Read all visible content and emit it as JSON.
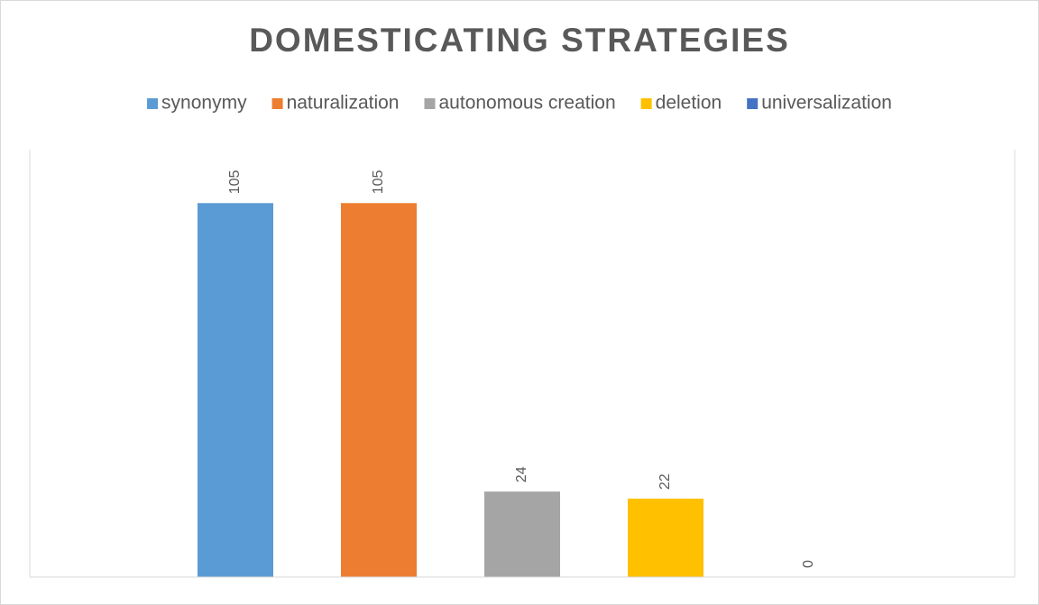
{
  "chart_data": {
    "type": "bar",
    "title": "DOMESTICATING STRATEGIES",
    "categories": [
      null
    ],
    "series": [
      {
        "name": "synonymy",
        "color": "#5b9bd5",
        "values": [
          105
        ]
      },
      {
        "name": "naturalization",
        "color": "#ed7d31",
        "values": [
          105
        ]
      },
      {
        "name": "autonomous creation",
        "color": "#a5a5a5",
        "values": [
          24
        ]
      },
      {
        "name": "deletion",
        "color": "#ffc000",
        "values": [
          22
        ]
      },
      {
        "name": "universalization",
        "color": "#4472c4",
        "values": [
          0
        ]
      }
    ],
    "ylim": [
      0,
      120
    ],
    "grid": false,
    "legend": "top",
    "data_labels": true
  }
}
